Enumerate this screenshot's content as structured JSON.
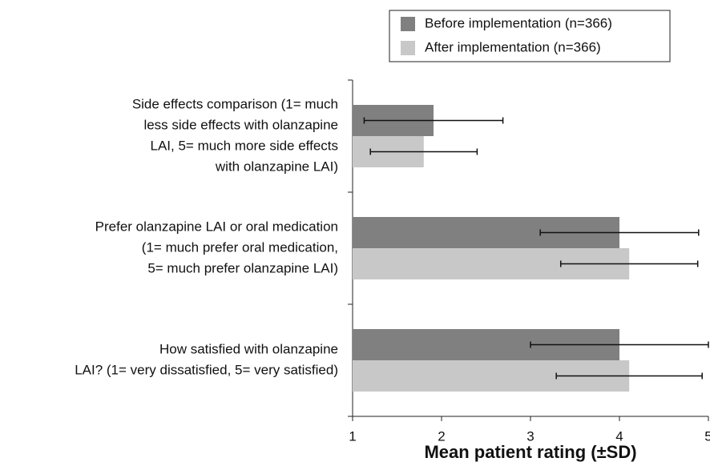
{
  "chart_data": {
    "type": "barh",
    "xlabel": "Mean patient rating (±SD)",
    "categories": [
      [
        "Side effects comparison (1= much",
        "less side effects with olanzapine",
        "LAI, 5= much more side effects",
        "with olanzapine LAI)"
      ],
      [
        "Prefer olanzapine LAI or oral medication",
        "(1= much prefer oral medication,",
        "5= much prefer olanzapine LAI)"
      ],
      [
        "How satisfied with olanzapine",
        "LAI? (1= very dissatisfied, 5= very satisfied)"
      ]
    ],
    "series": [
      {
        "name": "Before implementation (n=366)",
        "color": "#808080",
        "values": [
          1.91,
          4.0,
          4.0
        ],
        "errors": [
          0.78,
          0.89,
          1.0
        ]
      },
      {
        "name": "After implementation (n=366)",
        "color": "#c8c8c8",
        "values": [
          1.8,
          4.11,
          4.11
        ],
        "errors": [
          0.6,
          0.77,
          0.82
        ]
      }
    ],
    "xlim": [
      1,
      5
    ],
    "xticks": [
      1,
      2,
      3,
      4,
      5
    ],
    "legend": "top-right"
  }
}
